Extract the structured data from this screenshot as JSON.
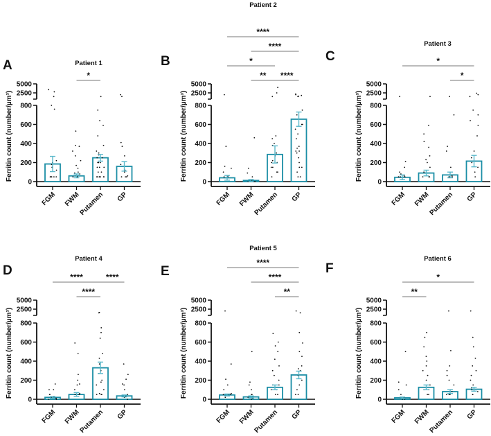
{
  "colors": {
    "bar": "#1b8ea6",
    "error": "#5bb8cb",
    "axis": "#111111",
    "dot": "#111111"
  },
  "chart_data": [
    {
      "type": "bar",
      "panel": "A",
      "title": "Patient 1",
      "ylabel": "Ferritin count (number/µm³)",
      "categories": [
        "FGM",
        "FWM",
        "Putamen",
        "GP"
      ],
      "yticks_lower": [
        0,
        200,
        400,
        600,
        800
      ],
      "yticks_upper": [
        2500,
        5000
      ],
      "means": [
        185,
        60,
        250,
        160
      ],
      "sem": [
        80,
        20,
        35,
        50
      ],
      "points": [
        [
          50,
          50,
          50,
          50,
          50,
          50,
          120,
          150,
          180,
          200,
          220,
          760,
          800,
          1500,
          2800,
          3400
        ],
        [
          50,
          50,
          60,
          80,
          90,
          100,
          140,
          170,
          220,
          270,
          320,
          370,
          380,
          530
        ],
        [
          50,
          50,
          50,
          50,
          50,
          50,
          50,
          50,
          100,
          100,
          150,
          150,
          150,
          200,
          200,
          200,
          250,
          250,
          280,
          300,
          320,
          380,
          480,
          590,
          640,
          750,
          1500
        ],
        [
          50,
          50,
          50,
          60,
          100,
          120,
          180,
          270,
          370,
          410,
          1500,
          2000
        ]
      ],
      "significance": [
        {
          "from": 1,
          "to": 2,
          "label": "*",
          "level": 0
        }
      ]
    },
    {
      "type": "bar",
      "panel": "B",
      "title": "Patient 2",
      "ylabel": "Ferritin count (number/µm³)",
      "categories": [
        "FGM",
        "FWM",
        "Putamen",
        "GP"
      ],
      "yticks_lower": [
        0,
        200,
        400,
        600,
        800
      ],
      "yticks_upper": [
        2500,
        5000
      ],
      "means": [
        40,
        12,
        285,
        655
      ],
      "sem": [
        25,
        10,
        90,
        75
      ],
      "points": [
        [
          50,
          50,
          60,
          100,
          140,
          160,
          370,
          2000
        ],
        [
          0,
          0,
          0,
          10,
          20,
          50,
          90,
          140,
          460
        ],
        [
          50,
          100,
          100,
          150,
          150,
          200,
          200,
          220,
          270,
          300,
          380,
          400,
          450,
          480,
          1500,
          2500,
          4000
        ],
        [
          50,
          50,
          100,
          150,
          150,
          200,
          250,
          300,
          320,
          320,
          350,
          370,
          450,
          500,
          550,
          600,
          600,
          700,
          750,
          1500,
          1600,
          1800,
          2000,
          2200
        ]
      ],
      "significance": [
        {
          "from": 0,
          "to": 3,
          "label": "****",
          "level": 3
        },
        {
          "from": 1,
          "to": 3,
          "label": "****",
          "level": 2
        },
        {
          "from": 0,
          "to": 2,
          "label": "*",
          "level": 1
        },
        {
          "from": 1,
          "to": 2,
          "label": "**",
          "level": 0
        },
        {
          "from": 2,
          "to": 3,
          "label": "****",
          "level": 0
        }
      ]
    },
    {
      "type": "bar",
      "panel": "C",
      "title": "Patient 3",
      "ylabel": "Ferritin count (number/µm³)",
      "categories": [
        "FGM",
        "FWM",
        "Putamen",
        "GP"
      ],
      "yticks_lower": [
        0,
        200,
        400,
        600,
        800
      ],
      "yticks_upper": [
        2500,
        5000
      ],
      "means": [
        45,
        90,
        70,
        215
      ],
      "sem": [
        25,
        30,
        30,
        60
      ],
      "points": [
        [
          50,
          50,
          50,
          60,
          80,
          100,
          150,
          210,
          1500
        ],
        [
          50,
          50,
          50,
          100,
          150,
          200,
          230,
          270,
          360,
          420,
          500,
          590,
          1500
        ],
        [
          50,
          50,
          50,
          60,
          150,
          320,
          370,
          700,
          1500
        ],
        [
          50,
          100,
          150,
          200,
          250,
          320,
          480,
          590,
          640,
          700,
          750,
          1500,
          2000,
          2400
        ]
      ],
      "significance": [
        {
          "from": 0,
          "to": 3,
          "label": "*",
          "level": 1
        },
        {
          "from": 2,
          "to": 3,
          "label": "*",
          "level": 0
        }
      ]
    },
    {
      "type": "bar",
      "panel": "D",
      "title": "Patient 4",
      "ylabel": "Ferritin count (number/µm³)",
      "categories": [
        "FGM",
        "FWM",
        "Putamen",
        "GP"
      ],
      "yticks_lower": [
        0,
        200,
        400,
        600,
        800
      ],
      "yticks_upper": [
        2500,
        5000
      ],
      "means": [
        20,
        50,
        330,
        35
      ],
      "sem": [
        8,
        20,
        60,
        10
      ],
      "points": [
        [
          0,
          0,
          10,
          20,
          30,
          50,
          50,
          100,
          100,
          160
        ],
        [
          50,
          50,
          50,
          60,
          100,
          150,
          160,
          200,
          260,
          480,
          590
        ],
        [
          50,
          50,
          50,
          60,
          100,
          150,
          180,
          200,
          270,
          300,
          370,
          430,
          480,
          640,
          700,
          750,
          1500,
          1600
        ],
        [
          0,
          20,
          30,
          50,
          100,
          150,
          160,
          210,
          260,
          370
        ]
      ],
      "significance": [
        {
          "from": 0,
          "to": 2,
          "label": "****",
          "level": 1
        },
        {
          "from": 1,
          "to": 2,
          "label": "****",
          "level": 0
        },
        {
          "from": 2,
          "to": 3,
          "label": "****",
          "level": 1
        }
      ]
    },
    {
      "type": "bar",
      "panel": "E",
      "title": "Patient 5",
      "ylabel": "Ferritin count (number/µm³)",
      "categories": [
        "FGM",
        "FWM",
        "Putamen",
        "GP"
      ],
      "yticks_lower": [
        0,
        200,
        400,
        600,
        800
      ],
      "yticks_upper": [
        2500,
        5000
      ],
      "means": [
        45,
        25,
        125,
        255
      ],
      "sem": [
        10,
        10,
        25,
        40
      ],
      "points": [
        [
          20,
          50,
          50,
          50,
          60,
          100,
          150,
          210,
          370,
          2000
        ],
        [
          0,
          10,
          20,
          50,
          50,
          100,
          150,
          180,
          500
        ],
        [
          50,
          50,
          100,
          100,
          150,
          150,
          200,
          250,
          300,
          350,
          420,
          500,
          560,
          600,
          690
        ],
        [
          50,
          50,
          100,
          150,
          200,
          250,
          300,
          320,
          350,
          450,
          500,
          590,
          700,
          1500,
          2000
        ]
      ],
      "significance": [
        {
          "from": 0,
          "to": 3,
          "label": "****",
          "level": 2
        },
        {
          "from": 1,
          "to": 3,
          "label": "****",
          "level": 1
        },
        {
          "from": 2,
          "to": 3,
          "label": "**",
          "level": 0
        }
      ]
    },
    {
      "type": "bar",
      "panel": "F",
      "title": "Patient 6",
      "ylabel": "Ferritin count (number/µm³)",
      "categories": [
        "FGM",
        "FWM",
        "Putamen",
        "GP"
      ],
      "yticks_lower": [
        0,
        200,
        400,
        600,
        800
      ],
      "yticks_upper": [
        2500,
        5000
      ],
      "means": [
        15,
        125,
        80,
        105
      ],
      "sem": [
        8,
        25,
        20,
        20
      ],
      "points": [
        [
          0,
          0,
          10,
          20,
          50,
          100,
          150,
          180,
          500
        ],
        [
          50,
          50,
          100,
          100,
          150,
          200,
          250,
          300,
          350,
          400,
          450,
          550,
          650,
          700
        ],
        [
          50,
          50,
          50,
          80,
          100,
          150,
          200,
          250,
          300,
          350,
          510,
          2000
        ],
        [
          50,
          50,
          80,
          100,
          120,
          150,
          200,
          250,
          300,
          350,
          430,
          550,
          650,
          2000
        ]
      ],
      "significance": [
        {
          "from": 0,
          "to": 1,
          "label": "**",
          "level": 0
        },
        {
          "from": 0,
          "to": 3,
          "label": "*",
          "level": 1
        }
      ]
    }
  ]
}
